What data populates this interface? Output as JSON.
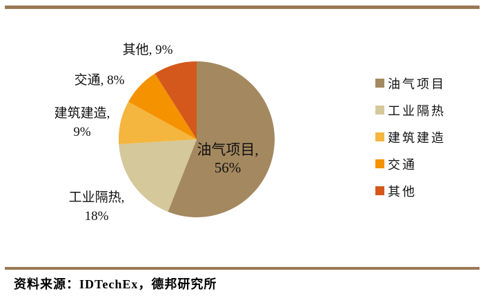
{
  "page": {
    "rule_color": "#9A7857",
    "background": "#FFFFFF"
  },
  "chart_data": {
    "type": "pie",
    "title": "",
    "categories": [
      "油气项目",
      "工业隔热",
      "建筑建造",
      "交通",
      "其他"
    ],
    "values": [
      56,
      18,
      9,
      8,
      9
    ],
    "unit": "%",
    "colors": [
      "#A4885F",
      "#D5C89B",
      "#F4B63F",
      "#F59200",
      "#D4581C"
    ],
    "start_angle": "12-oclock",
    "direction": "clockwise",
    "legend_position": "right",
    "data_labels": [
      "油气项目, 56%",
      "工业隔热, 18%",
      "建筑建造, 9%",
      "交通, 8%",
      "其他, 9%"
    ]
  },
  "callouts": [
    {
      "id": "youqi",
      "line1": "油气项目,",
      "line2": "56%"
    },
    {
      "id": "gongye",
      "line1": "工业隔热,",
      "line2": "18%"
    },
    {
      "id": "jianzhu",
      "line1": "建筑建造,",
      "line2": "9%"
    },
    {
      "id": "jiaotong",
      "line1": "交通, 8%",
      "line2": ""
    },
    {
      "id": "qita",
      "line1": "其他, 9%",
      "line2": ""
    }
  ],
  "legend": {
    "items": [
      {
        "label": "油气项目"
      },
      {
        "label": "工业隔热"
      },
      {
        "label": "建筑建造"
      },
      {
        "label": "交通"
      },
      {
        "label": "其他"
      }
    ]
  },
  "footer": {
    "source": "资料来源：IDTechEx，德邦研究所"
  }
}
